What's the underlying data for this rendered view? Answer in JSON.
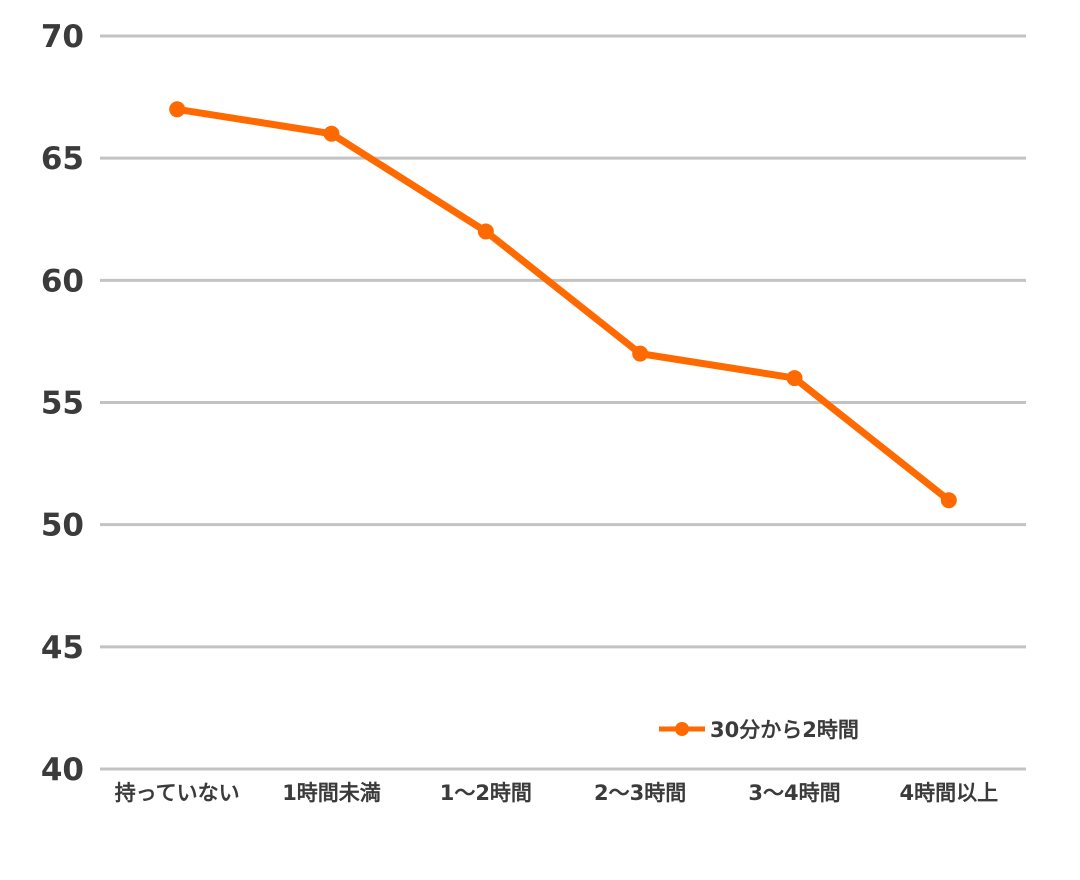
{
  "chart_data": {
    "type": "line",
    "categories": [
      "持っていない",
      "1時間未満",
      "1〜2時間",
      "2〜3時間",
      "3〜4時間",
      "4時間以上"
    ],
    "series": [
      {
        "name": "30分から2時間",
        "values": [
          67,
          66,
          62,
          57,
          56,
          51
        ]
      }
    ],
    "title": "",
    "xlabel": "",
    "ylabel": "",
    "ylim": [
      40,
      70
    ],
    "yticks": [
      70,
      65,
      60,
      55,
      50,
      45,
      40
    ],
    "grid": true,
    "legend_position": "inside-bottom-right",
    "marker": "circle",
    "colors": {
      "series": "#FF6A00",
      "grid": "#C3C3C3",
      "text": "#3B3B3B",
      "background": "#FFFFFF"
    }
  }
}
